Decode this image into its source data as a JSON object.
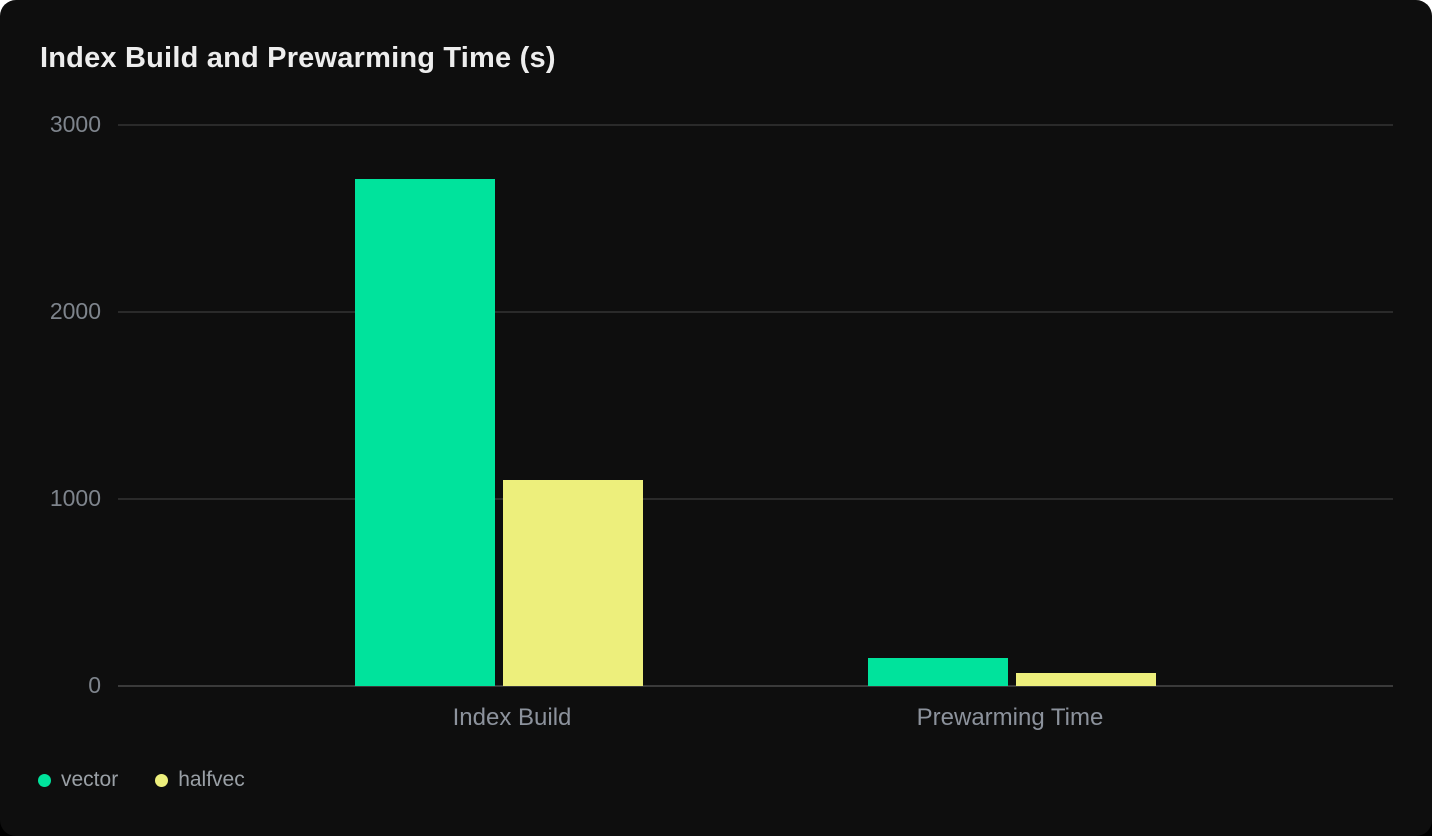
{
  "card": {
    "title": "Index Build and Prewarming Time (s)"
  },
  "theme": {
    "card_background": "#0E0E0E",
    "page_background": "#000000",
    "gridline_color": "#2A2A2A",
    "zero_line_color": "#3A3A3A",
    "title_color": "#EDEDED",
    "tick_label_color": "#7E848C",
    "category_label_color": "#8C929C",
    "legend_label_color": "#9AA0A6"
  },
  "chart_data": {
    "type": "bar",
    "title": "Index Build and Prewarming Time (s)",
    "categories": [
      "Index Build",
      "Prewarming Time"
    ],
    "series": [
      {
        "name": "vector",
        "color": "#00E39C",
        "values": [
          2710,
          150
        ]
      },
      {
        "name": "halfvec",
        "color": "#EDEF7C",
        "values": [
          1100,
          70
        ]
      }
    ],
    "xlabel": "",
    "ylabel": "",
    "ylim": [
      0,
      3000
    ],
    "yticks": [
      0,
      1000,
      2000,
      3000
    ],
    "grid": true,
    "legend_position": "bottom-left"
  }
}
